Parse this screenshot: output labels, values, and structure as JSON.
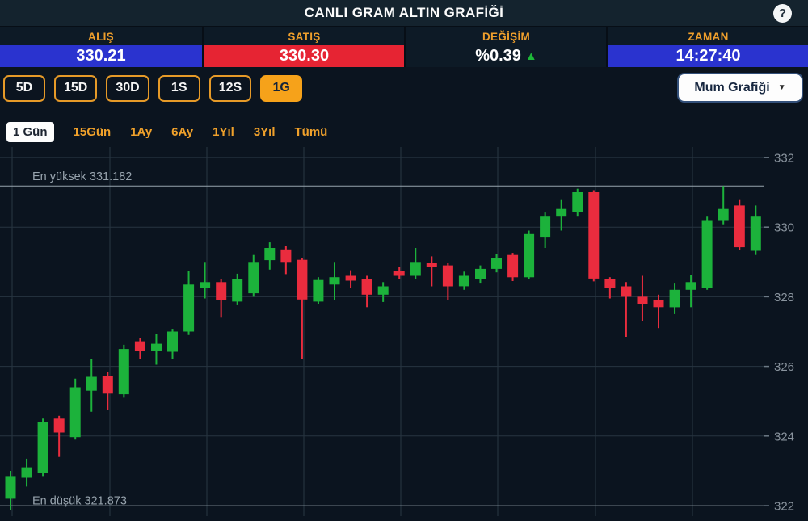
{
  "header": {
    "title": "CANLI GRAM ALTIN GRAFİĞİ",
    "help": "?"
  },
  "stats": {
    "buy": {
      "label": "ALIŞ",
      "value": "330.21"
    },
    "sell": {
      "label": "SATIŞ",
      "value": "330.30"
    },
    "change": {
      "label": "DEĞİŞİM",
      "value": "%0.39",
      "arrow": "▲",
      "arrow_color": "#1db838"
    },
    "time": {
      "label": "ZAMAN",
      "value": "14:27:40"
    }
  },
  "timeframes": {
    "items": [
      "5D",
      "15D",
      "30D",
      "1S",
      "12S",
      "1G"
    ],
    "active": "1G"
  },
  "chart_type_select": {
    "value": "Mum Grafiği",
    "arrow": "▼"
  },
  "ranges": {
    "items": [
      "1 Gün",
      "15Gün",
      "1Ay",
      "6Ay",
      "1Yıl",
      "3Yıl",
      "Tümü"
    ],
    "active": "1 Gün"
  },
  "colors": {
    "accent_orange": "#f0a12b",
    "buy_blue": "#2a33cf",
    "sell_red": "#e62433"
  },
  "chart_data": {
    "type": "candlestick",
    "y_ticks": [
      332,
      330,
      328,
      326,
      324,
      322
    ],
    "ymin": 321.7,
    "ymax": 332.3,
    "grid": true,
    "legend": "none",
    "axis_side": "right",
    "annotations": {
      "high": {
        "label": "En yüksek 331.182",
        "value": 331.182
      },
      "low": {
        "label": "En düşük 321.873",
        "value": 321.873
      }
    },
    "colors": {
      "up": "#1cb23b",
      "down": "#ea2c3e"
    },
    "candles_format": [
      "open",
      "high",
      "low",
      "close"
    ],
    "candles": [
      [
        322.2,
        323.0,
        321.88,
        322.85
      ],
      [
        322.8,
        323.35,
        322.55,
        323.1
      ],
      [
        322.95,
        324.5,
        322.85,
        324.4
      ],
      [
        324.5,
        324.58,
        323.4,
        324.1
      ],
      [
        323.97,
        325.65,
        323.9,
        325.4
      ],
      [
        325.3,
        326.2,
        324.7,
        325.7
      ],
      [
        325.72,
        325.85,
        324.75,
        325.22
      ],
      [
        325.2,
        326.62,
        325.1,
        326.5
      ],
      [
        326.72,
        326.82,
        326.2,
        326.45
      ],
      [
        326.45,
        326.92,
        326.05,
        326.65
      ],
      [
        326.42,
        327.08,
        326.2,
        327.0
      ],
      [
        327.0,
        328.75,
        326.9,
        328.35
      ],
      [
        328.25,
        329.0,
        327.95,
        328.42
      ],
      [
        328.42,
        328.52,
        327.4,
        327.9
      ],
      [
        327.86,
        328.66,
        327.78,
        328.5
      ],
      [
        328.1,
        329.2,
        328.0,
        329.0
      ],
      [
        329.05,
        329.56,
        328.78,
        329.4
      ],
      [
        329.36,
        329.46,
        328.65,
        329.0
      ],
      [
        329.06,
        329.12,
        326.2,
        327.92
      ],
      [
        327.86,
        328.56,
        327.8,
        328.48
      ],
      [
        328.35,
        329.0,
        327.9,
        328.56
      ],
      [
        328.6,
        328.76,
        328.25,
        328.46
      ],
      [
        328.5,
        328.6,
        327.7,
        328.06
      ],
      [
        328.06,
        328.42,
        327.85,
        328.3
      ],
      [
        328.74,
        328.86,
        328.5,
        328.6
      ],
      [
        328.6,
        329.4,
        328.5,
        329.0
      ],
      [
        328.96,
        329.16,
        328.3,
        328.86
      ],
      [
        328.9,
        328.96,
        327.9,
        328.3
      ],
      [
        328.3,
        328.72,
        328.2,
        328.6
      ],
      [
        328.5,
        328.9,
        328.4,
        328.8
      ],
      [
        328.8,
        329.22,
        328.7,
        329.1
      ],
      [
        329.2,
        329.26,
        328.45,
        328.56
      ],
      [
        328.56,
        329.9,
        328.5,
        329.8
      ],
      [
        329.7,
        330.42,
        329.4,
        330.3
      ],
      [
        330.3,
        330.8,
        329.9,
        330.52
      ],
      [
        330.42,
        331.1,
        330.3,
        331.0
      ],
      [
        331.0,
        331.06,
        328.44,
        328.52
      ],
      [
        328.5,
        328.56,
        327.95,
        328.25
      ],
      [
        328.3,
        328.42,
        326.85,
        328.0
      ],
      [
        328.0,
        328.6,
        327.3,
        327.8
      ],
      [
        327.9,
        328.06,
        327.1,
        327.7
      ],
      [
        327.7,
        328.4,
        327.5,
        328.2
      ],
      [
        328.2,
        328.62,
        327.7,
        328.42
      ],
      [
        328.26,
        330.3,
        328.2,
        330.2
      ],
      [
        330.2,
        331.18,
        330.08,
        330.52
      ],
      [
        330.62,
        330.8,
        329.35,
        329.42
      ],
      [
        329.32,
        330.62,
        329.2,
        330.3
      ]
    ]
  }
}
